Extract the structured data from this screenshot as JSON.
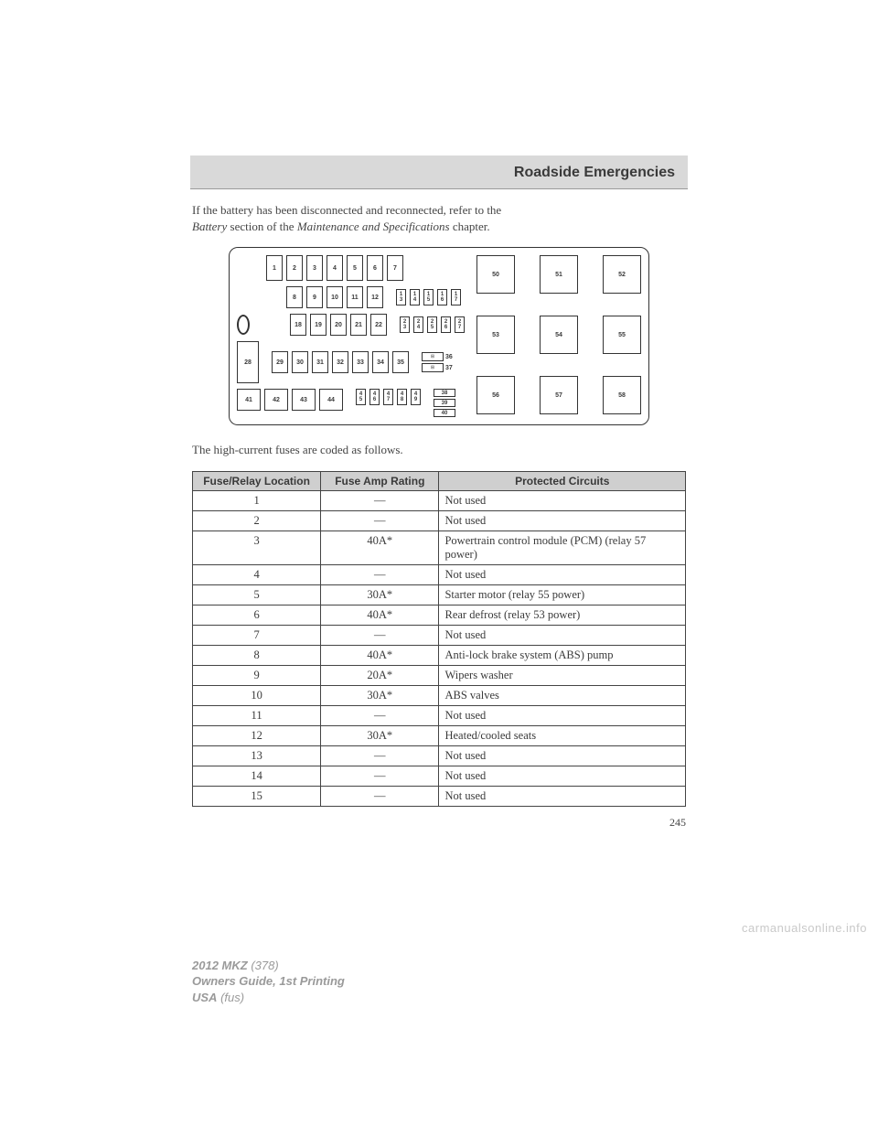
{
  "header": {
    "title": "Roadside Emergencies"
  },
  "intro": {
    "line1": "If the battery has been disconnected and reconnected, refer to the",
    "line2_italic1": "Battery",
    "line2_mid": " section of the ",
    "line2_italic2": "Maintenance and Specifications",
    "line2_end": " chapter."
  },
  "caption": "The high-current fuses are coded as follows.",
  "diagram": {
    "row1": [
      "1",
      "2",
      "3",
      "4",
      "5",
      "6",
      "7"
    ],
    "row2": [
      "8",
      "9",
      "10",
      "11",
      "12"
    ],
    "row2_tiny": [
      [
        "1",
        "3"
      ],
      [
        "1",
        "4"
      ],
      [
        "1",
        "5"
      ],
      [
        "1",
        "6"
      ],
      [
        "1",
        "7"
      ]
    ],
    "row3": [
      "18",
      "19",
      "20",
      "21",
      "22"
    ],
    "row3_tiny": [
      [
        "2",
        "3"
      ],
      [
        "2",
        "4"
      ],
      [
        "2",
        "5"
      ],
      [
        "2",
        "6"
      ],
      [
        "2",
        "7"
      ]
    ],
    "row4_lead": "28",
    "row4": [
      "29",
      "30",
      "31",
      "32",
      "33",
      "34",
      "35"
    ],
    "row4_side": [
      "36",
      "37"
    ],
    "row5": [
      "41",
      "42",
      "43",
      "44"
    ],
    "row5_tiny": [
      [
        "4",
        "5"
      ],
      [
        "4",
        "6"
      ],
      [
        "4",
        "7"
      ],
      [
        "4",
        "8"
      ],
      [
        "4",
        "9"
      ]
    ],
    "row5_mid": [
      "38",
      "39",
      "40"
    ],
    "right_top": [
      "50",
      "51",
      "52"
    ],
    "right_mid": [
      "53",
      "54",
      "55"
    ],
    "right_bot": [
      "56",
      "57",
      "58"
    ]
  },
  "table": {
    "headers": {
      "loc": "Fuse/Relay Location",
      "amp": "Fuse Amp Rating",
      "circ": "Protected Circuits"
    },
    "rows": [
      {
        "loc": "1",
        "amp": "—",
        "circ": "Not used"
      },
      {
        "loc": "2",
        "amp": "—",
        "circ": "Not used"
      },
      {
        "loc": "3",
        "amp": "40A*",
        "circ": "Powertrain control module (PCM) (relay 57 power)"
      },
      {
        "loc": "4",
        "amp": "—",
        "circ": "Not used"
      },
      {
        "loc": "5",
        "amp": "30A*",
        "circ": "Starter motor (relay 55 power)"
      },
      {
        "loc": "6",
        "amp": "40A*",
        "circ": "Rear defrost (relay 53 power)"
      },
      {
        "loc": "7",
        "amp": "—",
        "circ": "Not used"
      },
      {
        "loc": "8",
        "amp": "40A*",
        "circ": "Anti-lock brake system (ABS) pump"
      },
      {
        "loc": "9",
        "amp": "20A*",
        "circ": "Wipers washer"
      },
      {
        "loc": "10",
        "amp": "30A*",
        "circ": "ABS valves"
      },
      {
        "loc": "11",
        "amp": "—",
        "circ": "Not used"
      },
      {
        "loc": "12",
        "amp": "30A*",
        "circ": "Heated/cooled seats"
      },
      {
        "loc": "13",
        "amp": "—",
        "circ": "Not used"
      },
      {
        "loc": "14",
        "amp": "—",
        "circ": "Not used"
      },
      {
        "loc": "15",
        "amp": "—",
        "circ": "Not used"
      }
    ]
  },
  "page_number": "245",
  "footer": {
    "model": "2012 MKZ",
    "model_code": " (378)",
    "guide": "Owners Guide, 1st Printing",
    "region": "USA",
    "region_code": " (fus)"
  },
  "watermark": "carmanualsonline.info"
}
